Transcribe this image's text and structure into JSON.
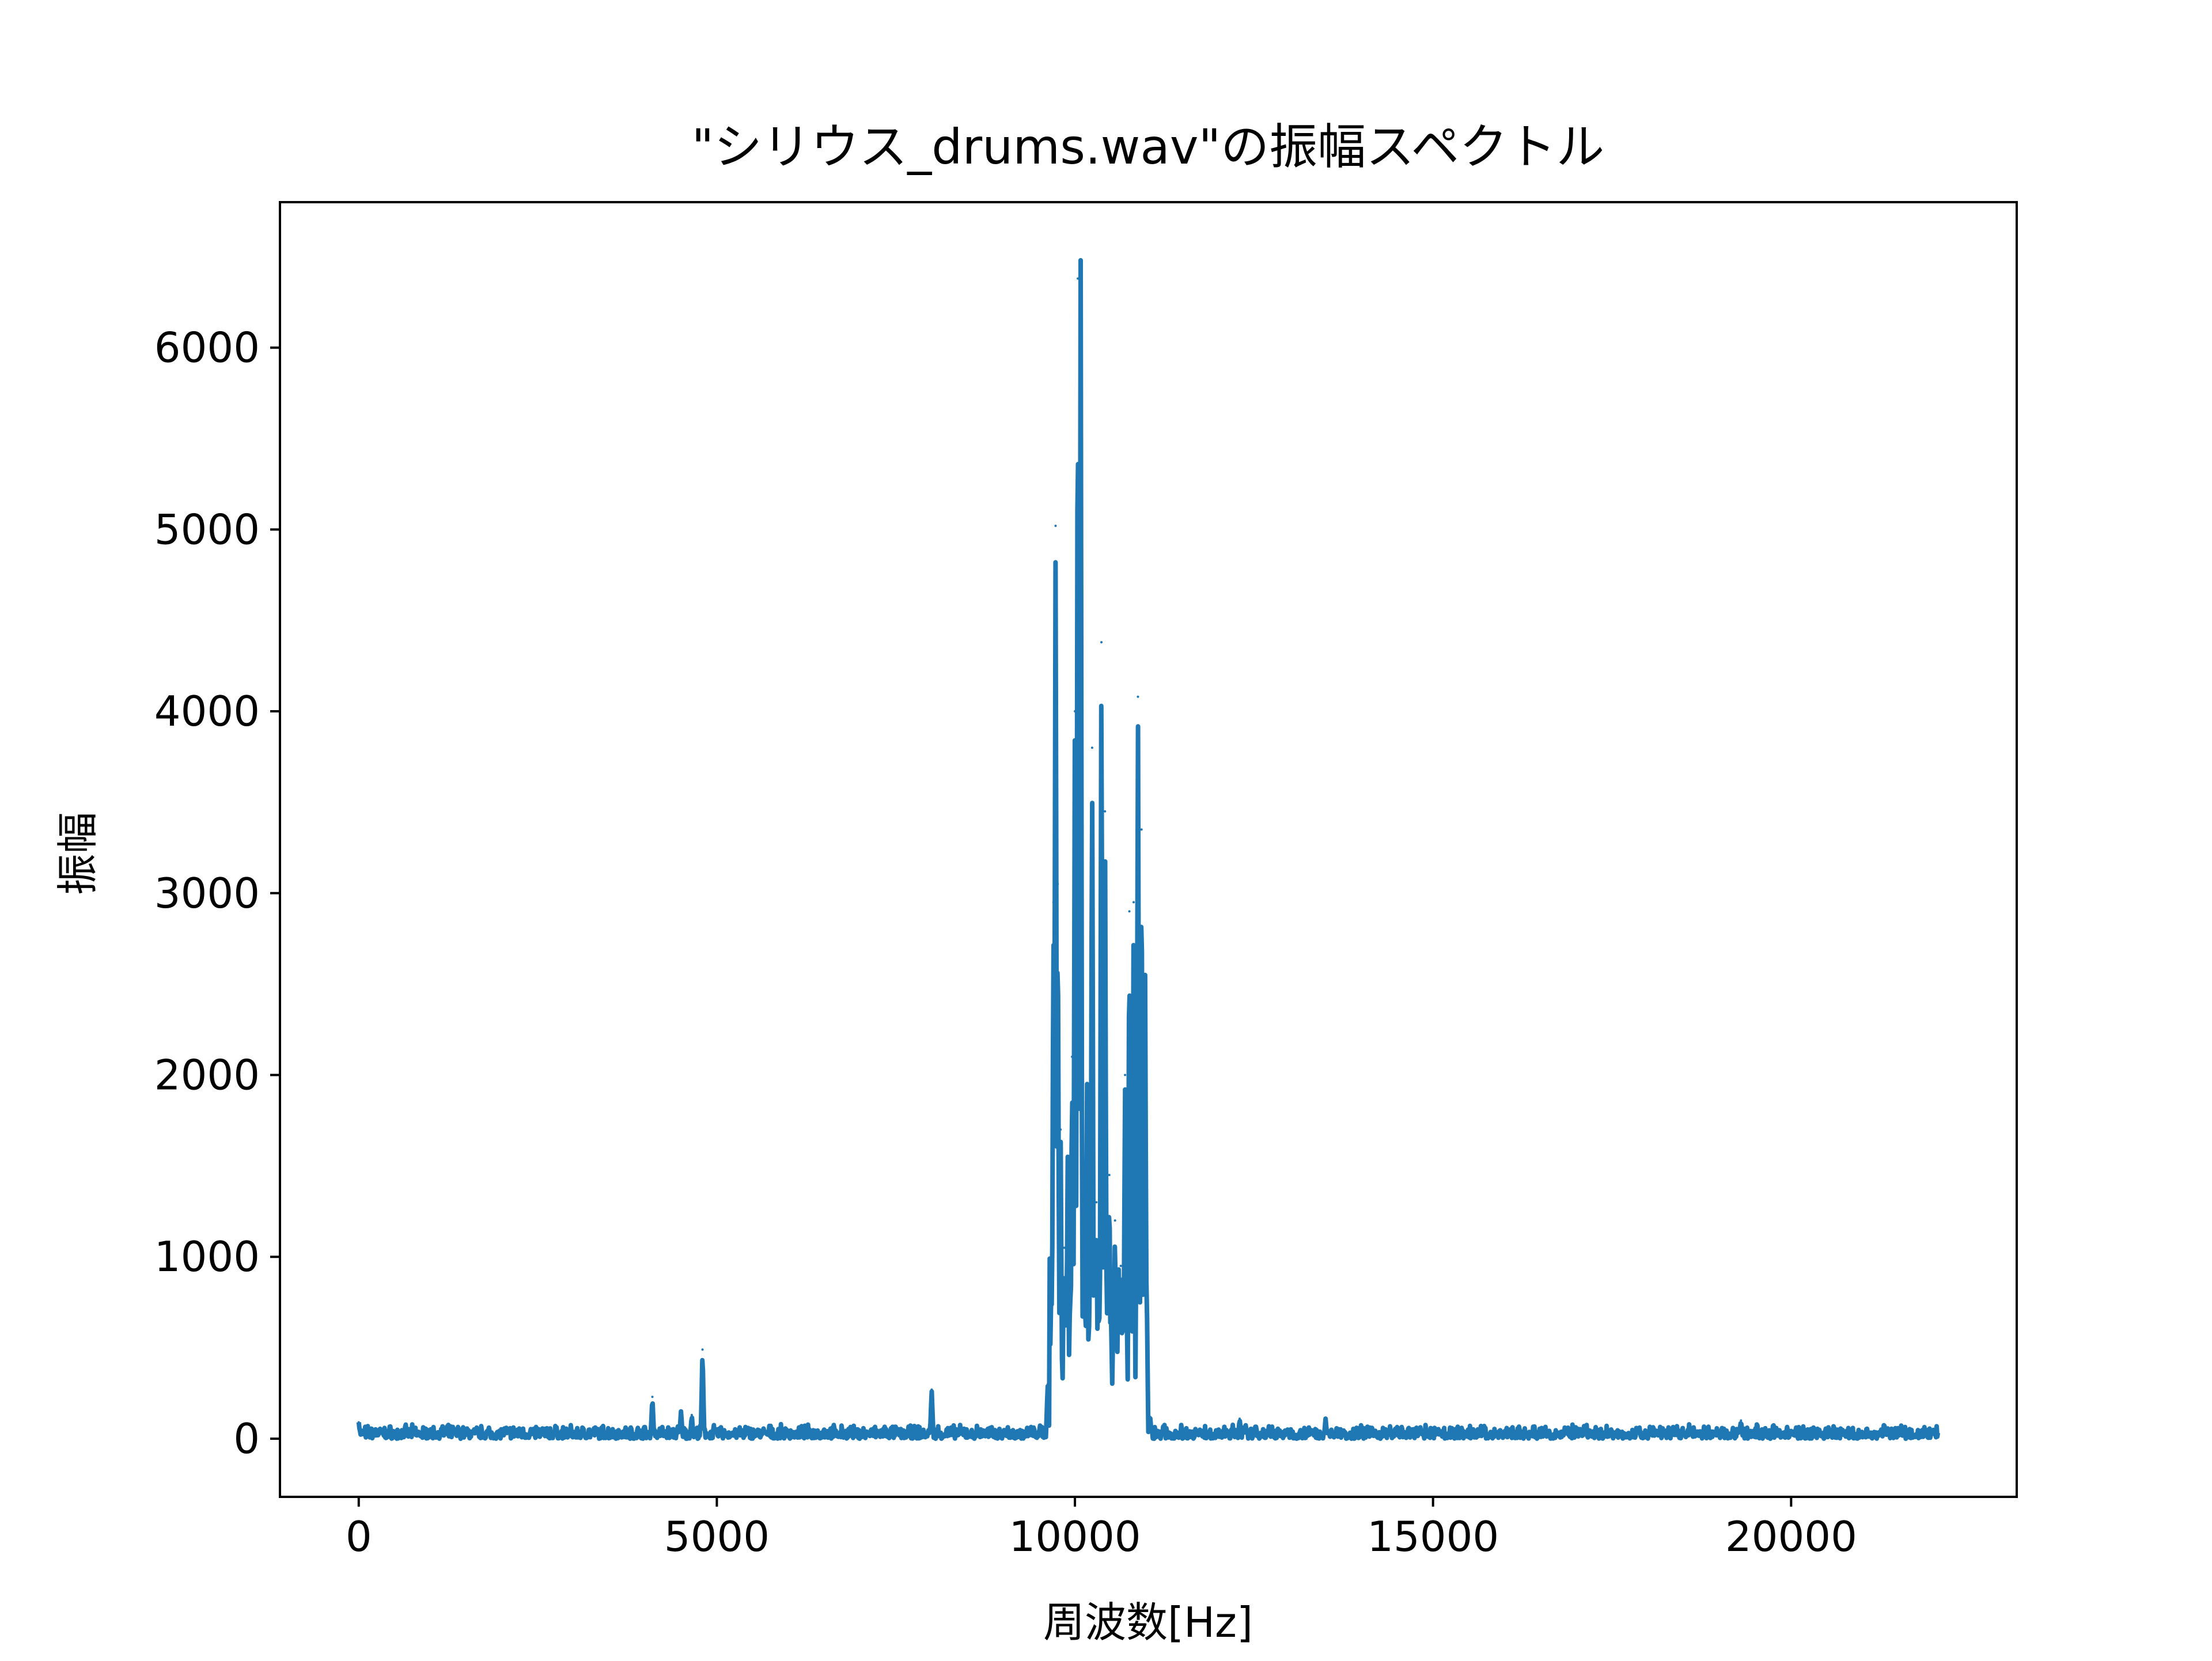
{
  "chart_data": {
    "type": "line",
    "title": "\"シリウス_drums.wav\"の振幅スペクトル",
    "xlabel": "周波数[Hz]",
    "ylabel": "振幅",
    "xlim": [
      -1100,
      23150
    ],
    "ylim": [
      -320,
      6800
    ],
    "xticks": [
      0,
      5000,
      10000,
      15000,
      20000
    ],
    "xtick_labels": [
      "0",
      "5000",
      "10000",
      "15000",
      "20000"
    ],
    "yticks": [
      0,
      1000,
      2000,
      3000,
      4000,
      5000,
      6000
    ],
    "ytick_labels": [
      "0",
      "1000",
      "2000",
      "3000",
      "4000",
      "5000",
      "6000"
    ],
    "grid": false,
    "series": [
      {
        "color": "#1f77b4",
        "x_range": [
          0,
          22050
        ],
        "baseline_noise_max": 80,
        "peaks": [
          {
            "x": 0,
            "y": 90
          },
          {
            "x": 4100,
            "y": 230
          },
          {
            "x": 4500,
            "y": 150
          },
          {
            "x": 4650,
            "y": 130
          },
          {
            "x": 4800,
            "y": 490
          },
          {
            "x": 8000,
            "y": 270
          },
          {
            "x": 9620,
            "y": 300
          },
          {
            "x": 9700,
            "y": 2950
          },
          {
            "x": 9730,
            "y": 5020
          },
          {
            "x": 9760,
            "y": 3050
          },
          {
            "x": 9800,
            "y": 1700
          },
          {
            "x": 9850,
            "y": 1050
          },
          {
            "x": 9900,
            "y": 1550
          },
          {
            "x": 9960,
            "y": 2100
          },
          {
            "x": 10000,
            "y": 4000
          },
          {
            "x": 10040,
            "y": 6380
          },
          {
            "x": 10080,
            "y": 6480
          },
          {
            "x": 10120,
            "y": 1400
          },
          {
            "x": 10170,
            "y": 1950
          },
          {
            "x": 10240,
            "y": 3800
          },
          {
            "x": 10300,
            "y": 1300
          },
          {
            "x": 10370,
            "y": 4380
          },
          {
            "x": 10420,
            "y": 3450
          },
          {
            "x": 10480,
            "y": 1450
          },
          {
            "x": 10560,
            "y": 1200
          },
          {
            "x": 10640,
            "y": 950
          },
          {
            "x": 10700,
            "y": 2000
          },
          {
            "x": 10760,
            "y": 2900
          },
          {
            "x": 10820,
            "y": 2950
          },
          {
            "x": 10880,
            "y": 4080
          },
          {
            "x": 10930,
            "y": 3350
          },
          {
            "x": 10980,
            "y": 2550
          },
          {
            "x": 11050,
            "y": 120
          },
          {
            "x": 12300,
            "y": 110
          },
          {
            "x": 13500,
            "y": 110
          },
          {
            "x": 19300,
            "y": 100
          },
          {
            "x": 21300,
            "y": 80
          }
        ]
      }
    ]
  }
}
